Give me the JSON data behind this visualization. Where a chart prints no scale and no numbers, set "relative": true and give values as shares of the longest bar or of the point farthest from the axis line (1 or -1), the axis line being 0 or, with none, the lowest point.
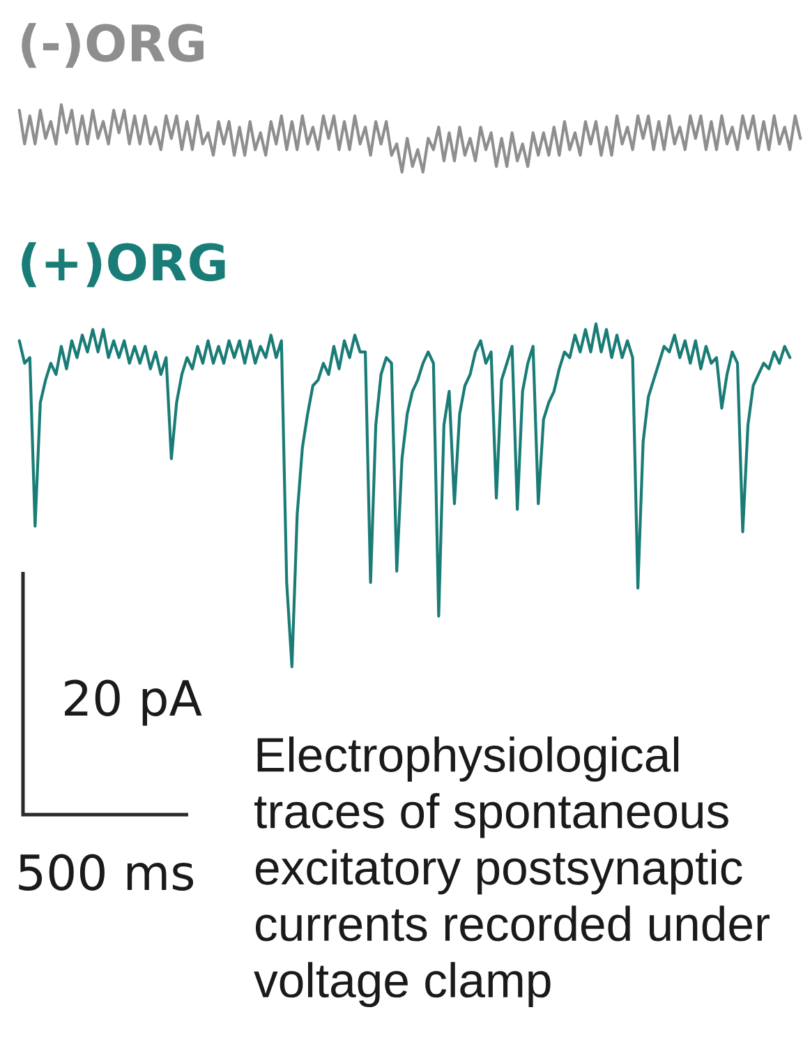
{
  "chart_data": {
    "type": "line",
    "relative": true,
    "categories": [
      null,
      null,
      null,
      null,
      null,
      null,
      null,
      null,
      null,
      null,
      null,
      null,
      null,
      null,
      null,
      null,
      null,
      null,
      null,
      null,
      null,
      null,
      null,
      null,
      null,
      null,
      null,
      null,
      null,
      null,
      null,
      null,
      null,
      null,
      null,
      null,
      null,
      null,
      null,
      null,
      null,
      null,
      null,
      null,
      null,
      null,
      null,
      null,
      null,
      null,
      null,
      null,
      null,
      null,
      null,
      null,
      null,
      null,
      null,
      null,
      null,
      null,
      null,
      null,
      null,
      null,
      null,
      null,
      null,
      null,
      null,
      null,
      null,
      null,
      null,
      null,
      null,
      null,
      null,
      null,
      null,
      null,
      null,
      null,
      null,
      null,
      null,
      null,
      null,
      null,
      null,
      null,
      null,
      null,
      null,
      null,
      null,
      null,
      null,
      null,
      null,
      null,
      null,
      null,
      null,
      null,
      null,
      null,
      null,
      null,
      null,
      null,
      null,
      null,
      null,
      null,
      null,
      null,
      null,
      null,
      null,
      null,
      null,
      null,
      null,
      null,
      null,
      null,
      null,
      null,
      null,
      null,
      null,
      null,
      null,
      null,
      null,
      null,
      null,
      null,
      null,
      null,
      null,
      null,
      null,
      null,
      null,
      null,
      null,
      null
    ],
    "series": [
      {
        "name": "(-)ORG",
        "color": "#8e8e8e",
        "values": [
          0.99,
          0.93,
          0.98,
          0.93,
          0.99,
          0.94,
          0.97,
          0.93,
          1.0,
          0.95,
          0.99,
          0.93,
          0.98,
          0.93,
          0.99,
          0.94,
          0.97,
          0.93,
          0.99,
          0.95,
          0.99,
          0.93,
          0.98,
          0.93,
          0.98,
          0.93,
          0.96,
          0.92,
          0.98,
          0.94,
          0.98,
          0.92,
          0.97,
          0.92,
          0.98,
          0.93,
          0.95,
          0.91,
          0.97,
          0.93,
          0.97,
          0.91,
          0.96,
          0.91,
          0.97,
          0.92,
          0.95,
          0.91,
          0.97,
          0.93,
          0.98,
          0.92,
          0.97,
          0.92,
          0.98,
          0.93,
          0.96,
          0.92,
          0.98,
          0.94,
          0.98,
          0.92,
          0.97,
          0.92,
          0.98,
          0.93,
          0.96,
          0.91,
          0.97,
          0.93,
          0.97,
          0.91,
          0.93,
          0.88,
          0.94,
          0.89,
          0.92,
          0.88,
          0.94,
          0.92,
          0.96,
          0.9,
          0.95,
          0.9,
          0.96,
          0.91,
          0.94,
          0.9,
          0.96,
          0.92,
          0.95,
          0.89,
          0.94,
          0.89,
          0.95,
          0.9,
          0.93,
          0.89,
          0.95,
          0.91,
          0.95,
          0.91,
          0.96,
          0.91,
          0.97,
          0.92,
          0.95,
          0.91,
          0.97,
          0.93,
          0.97,
          0.91,
          0.96,
          0.91,
          0.98,
          0.93,
          0.96,
          0.92,
          0.98,
          0.94,
          0.98,
          0.92,
          0.97,
          0.92,
          0.98,
          0.93,
          0.96,
          0.92,
          0.98,
          0.94,
          0.98,
          0.92,
          0.97,
          0.92,
          0.98,
          0.93,
          0.96,
          0.92,
          0.98,
          0.94,
          0.98,
          0.92,
          0.97,
          0.92,
          0.98,
          0.93,
          0.96,
          0.92,
          0.98,
          0.94
        ]
      },
      {
        "name": "(+)ORG",
        "color": "#1a7c76",
        "values": [
          0.58,
          0.54,
          0.55,
          0.25,
          0.47,
          0.51,
          0.54,
          0.52,
          0.57,
          0.53,
          0.58,
          0.55,
          0.59,
          0.56,
          0.6,
          0.56,
          0.6,
          0.55,
          0.58,
          0.55,
          0.58,
          0.54,
          0.57,
          0.54,
          0.57,
          0.53,
          0.56,
          0.52,
          0.55,
          0.37,
          0.47,
          0.52,
          0.55,
          0.53,
          0.57,
          0.54,
          0.58,
          0.54,
          0.57,
          0.54,
          0.58,
          0.55,
          0.58,
          0.54,
          0.58,
          0.54,
          0.57,
          0.55,
          0.59,
          0.55,
          0.58,
          0.15,
          0.0,
          0.27,
          0.39,
          0.45,
          0.5,
          0.51,
          0.54,
          0.52,
          0.57,
          0.53,
          0.58,
          0.55,
          0.59,
          0.56,
          0.56,
          0.15,
          0.43,
          0.52,
          0.55,
          0.54,
          0.17,
          0.37,
          0.45,
          0.49,
          0.51,
          0.54,
          0.56,
          0.54,
          0.09,
          0.43,
          0.49,
          0.29,
          0.45,
          0.5,
          0.52,
          0.56,
          0.58,
          0.54,
          0.56,
          0.3,
          0.51,
          0.54,
          0.57,
          0.28,
          0.49,
          0.54,
          0.57,
          0.29,
          0.44,
          0.47,
          0.49,
          0.53,
          0.56,
          0.55,
          0.59,
          0.56,
          0.6,
          0.56,
          0.61,
          0.56,
          0.6,
          0.55,
          0.59,
          0.55,
          0.58,
          0.55,
          0.14,
          0.4,
          0.48,
          0.51,
          0.54,
          0.57,
          0.56,
          0.59,
          0.55,
          0.58,
          0.54,
          0.58,
          0.53,
          0.57,
          0.54,
          0.55,
          0.46,
          0.52,
          0.56,
          0.54,
          0.24,
          0.43,
          0.5,
          0.52,
          0.54,
          0.53,
          0.56,
          0.54,
          0.57,
          0.55,
          null,
          null
        ]
      }
    ],
    "annotations": [
      "20 pA",
      "500 ms",
      "Electrophysiological traces of spontaneous excitatory postsynaptic currents recorded under voltage clamp"
    ]
  }
}
